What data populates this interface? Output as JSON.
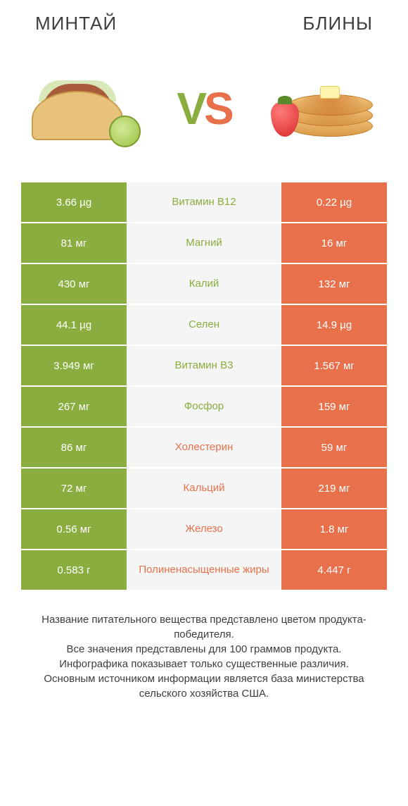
{
  "colors": {
    "left": "#8aad3f",
    "right": "#e8714c",
    "mid_bg": "#f5f5f5",
    "text": "#3e3e3e"
  },
  "header": {
    "left_title": "МИНТАЙ",
    "right_title": "БЛИНЫ"
  },
  "vs": {
    "v": "V",
    "s": "S"
  },
  "rows": [
    {
      "left": "3.66 µg",
      "label": "Витамин B12",
      "right": "0.22 µg",
      "winner": "left"
    },
    {
      "left": "81 мг",
      "label": "Магний",
      "right": "16 мг",
      "winner": "left"
    },
    {
      "left": "430 мг",
      "label": "Калий",
      "right": "132 мг",
      "winner": "left"
    },
    {
      "left": "44.1 µg",
      "label": "Селен",
      "right": "14.9 µg",
      "winner": "left"
    },
    {
      "left": "3.949 мг",
      "label": "Витамин B3",
      "right": "1.567 мг",
      "winner": "left"
    },
    {
      "left": "267 мг",
      "label": "Фосфор",
      "right": "159 мг",
      "winner": "left"
    },
    {
      "left": "86 мг",
      "label": "Холестерин",
      "right": "59 мг",
      "winner": "right"
    },
    {
      "left": "72 мг",
      "label": "Кальций",
      "right": "219 мг",
      "winner": "right"
    },
    {
      "left": "0.56 мг",
      "label": "Железо",
      "right": "1.8 мг",
      "winner": "right"
    },
    {
      "left": "0.583 г",
      "label": "Полиненасыщенные жиры",
      "right": "4.447 г",
      "winner": "right"
    }
  ],
  "footer": {
    "line1": "Название питательного вещества представлено цветом продукта-победителя.",
    "line2": "Все значения представлены для 100 граммов продукта.",
    "line3": "Инфографика показывает только существенные различия.",
    "line4": "Основным источником информации является база министерства сельского хозяйства США."
  }
}
